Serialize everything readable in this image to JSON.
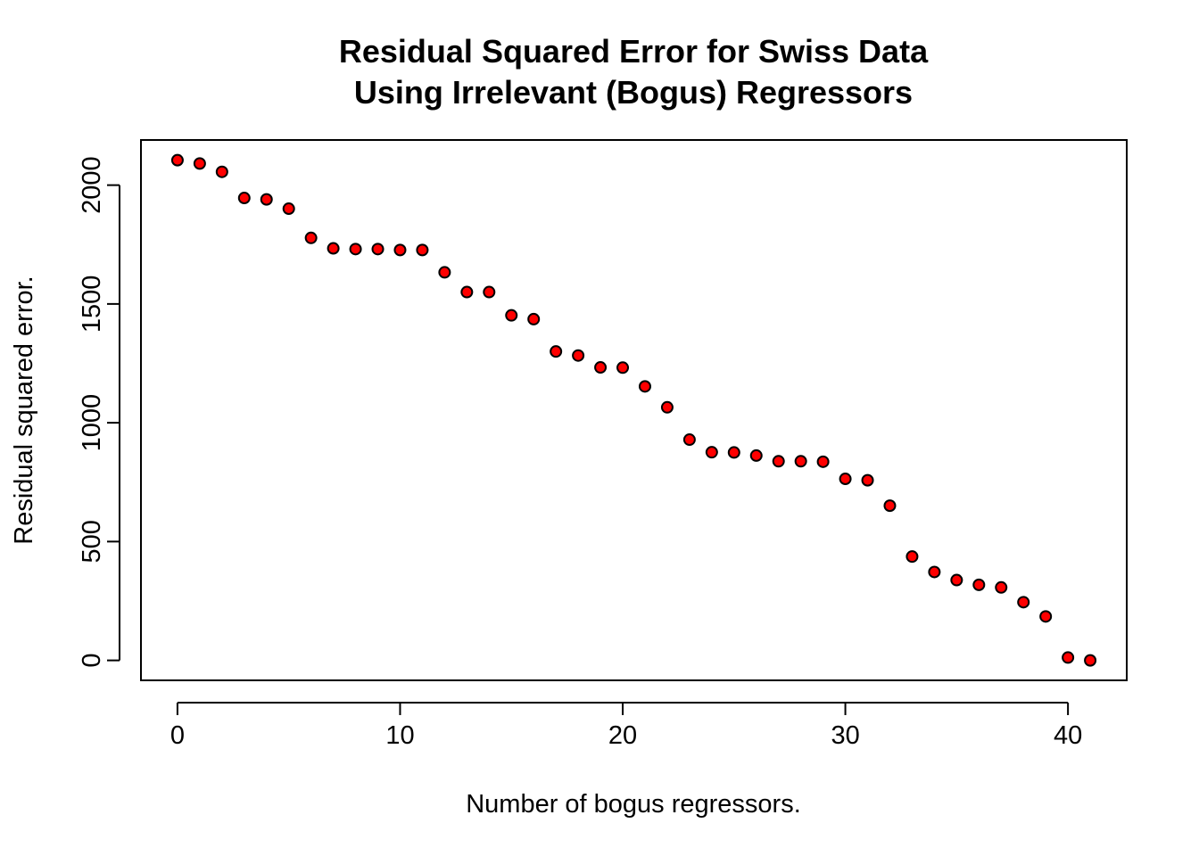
{
  "chart_data": {
    "type": "scatter",
    "title": "Residual Squared Error for Swiss Data",
    "subtitle": "Using Irrelevant (Bogus) Regressors",
    "xlabel": "Number of bogus regressors.",
    "ylabel": "Residual squared error.",
    "xlim": [
      -1.64,
      42.64
    ],
    "ylim": [
      -84,
      2190
    ],
    "xticks": [
      "0",
      "10",
      "20",
      "30",
      "40"
    ],
    "xtick_values": [
      0,
      10,
      20,
      30,
      40
    ],
    "yticks": [
      "0",
      "500",
      "1000",
      "1500",
      "2000"
    ],
    "ytick_values": [
      0,
      500,
      1000,
      1500,
      2000
    ],
    "grid": false,
    "point_color": "#ff0000",
    "point_edge_color": "#000000",
    "series": [
      {
        "x": [
          0,
          1,
          2,
          3,
          4,
          5,
          6,
          7,
          8,
          9,
          10,
          11,
          12,
          13,
          14,
          15,
          16,
          17,
          18,
          19,
          20,
          21,
          22,
          23,
          24,
          25,
          26,
          27,
          28,
          29,
          30,
          31,
          32,
          33,
          34,
          35,
          36,
          37,
          38,
          39,
          40,
          41
        ],
        "y": [
          2105,
          2091,
          2056,
          1946,
          1940,
          1901,
          1778,
          1734,
          1731,
          1731,
          1727,
          1727,
          1633,
          1550,
          1550,
          1452,
          1436,
          1300,
          1283,
          1233,
          1232,
          1153,
          1065,
          929,
          876,
          875,
          862,
          838,
          838,
          836,
          764,
          758,
          651,
          437,
          372,
          338,
          318,
          307,
          245,
          185,
          12,
          0
        ]
      }
    ]
  }
}
